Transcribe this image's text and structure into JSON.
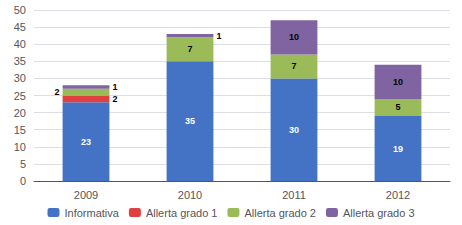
{
  "chart_data": {
    "type": "bar",
    "stacked": true,
    "data_labels": true,
    "grid": true,
    "legend": "bottom",
    "categories": [
      "2009",
      "2010",
      "2011",
      "2012"
    ],
    "series": [
      {
        "name": "Informativa",
        "color": "#4472c4",
        "values": [
          23,
          35,
          30,
          19
        ]
      },
      {
        "name": "Allerta grado 1",
        "color": "#e04040",
        "values": [
          2,
          0,
          0,
          0
        ]
      },
      {
        "name": "Allerta grado 2",
        "color": "#9bbb59",
        "values": [
          2,
          7,
          7,
          5
        ]
      },
      {
        "name": "Allerta grado 3",
        "color": "#8064a2",
        "values": [
          1,
          1,
          10,
          10
        ]
      }
    ],
    "ylim": [
      0,
      50
    ],
    "yticks": [
      0,
      5,
      10,
      15,
      20,
      25,
      30,
      35,
      40,
      45,
      50
    ]
  }
}
